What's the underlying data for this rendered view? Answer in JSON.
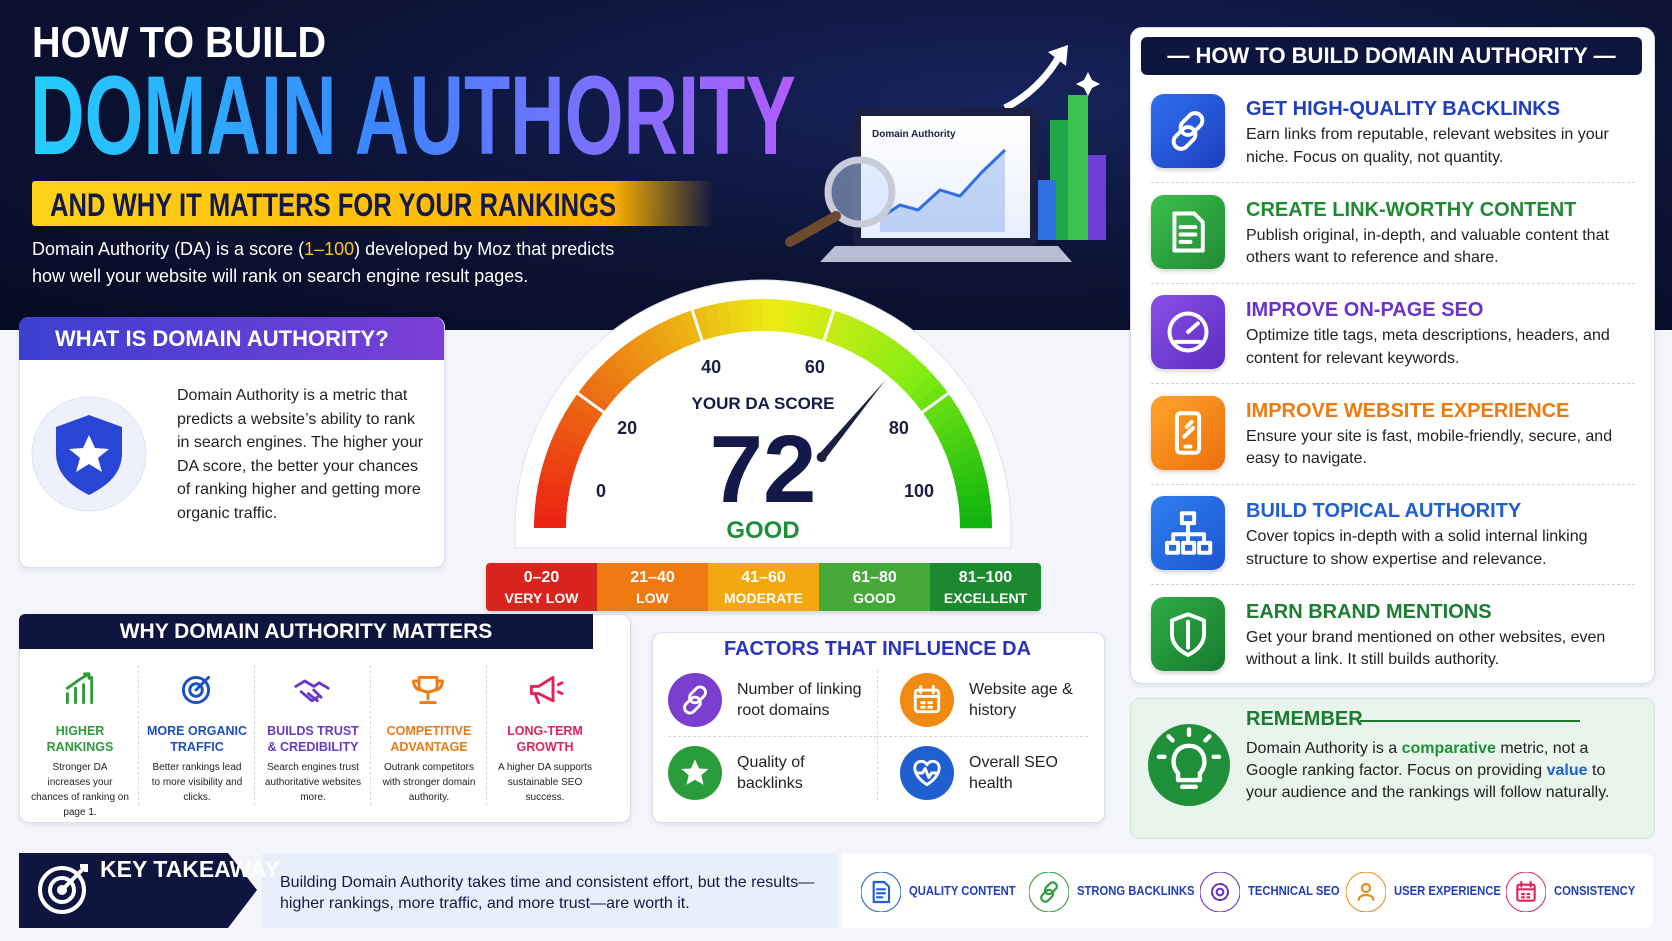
{
  "header": {
    "kicker": "HOW TO BUILD",
    "title": "DOMAIN AUTHORITY",
    "banner": "AND WHY IT MATTERS FOR YOUR RANKINGS",
    "description": [
      "Domain Authority (DA) is a score (",
      "1–100",
      ") developed by Moz that predicts how well your website will rank on search engine result pages."
    ]
  },
  "illustration": {
    "screen_title": "Domain Authority"
  },
  "what_is": {
    "title": "WHAT IS DOMAIN AUTHORITY?",
    "body": "Domain Authority is a metric that predicts a website’s ability to rank in search engines. The higher your DA score, the better your chances of ranking higher and getting more organic traffic."
  },
  "gauge": {
    "label": "YOUR DA SCORE",
    "score": 72,
    "rating": "GOOD",
    "lim": [
      0,
      100
    ],
    "ticks": [
      0,
      20,
      40,
      60,
      80,
      100
    ]
  },
  "scale": [
    {
      "range": "0–20",
      "label": "VERY LOW"
    },
    {
      "range": "21–40",
      "label": "LOW"
    },
    {
      "range": "41–60",
      "label": "MODERATE"
    },
    {
      "range": "61–80",
      "label": "GOOD"
    },
    {
      "range": "81–100",
      "label": "EXCELLENT"
    }
  ],
  "why_matters": {
    "title": "WHY DOMAIN AUTHORITY MATTERS",
    "items": [
      {
        "title": "HIGHER RANKINGS",
        "text": "Stronger DA increases your chances of ranking on page 1."
      },
      {
        "title": "MORE ORGANIC TRAFFIC",
        "text": "Better rankings lead to more visibility and clicks."
      },
      {
        "title": "BUILDS TRUST & CREDIBILITY",
        "text": "Search engines trust authoritative websites more."
      },
      {
        "title": "COMPETITIVE ADVANTAGE",
        "text": "Outrank competitors with stronger domain authority."
      },
      {
        "title": "LONG-TERM GROWTH",
        "text": "A higher DA supports sustainable SEO success."
      }
    ]
  },
  "factors": {
    "title": "FACTORS THAT INFLUENCE DA",
    "items": [
      "Number of linking root domains",
      "Website age & history",
      "Quality of backlinks",
      "Overall SEO health"
    ]
  },
  "steps": {
    "title": "HOW TO BUILD DOMAIN AUTHORITY",
    "items": [
      {
        "title": "GET HIGH-QUALITY BACKLINKS",
        "text": "Earn links from reputable, relevant websites in your niche. Focus on quality, not quantity."
      },
      {
        "title": "CREATE LINK-WORTHY CONTENT",
        "text": "Publish original, in-depth, and valuable content that others want to reference and share."
      },
      {
        "title": "IMPROVE ON-PAGE SEO",
        "text": "Optimize title tags, meta descriptions, headers, and content for relevant keywords."
      },
      {
        "title": "IMPROVE WEBSITE EXPERIENCE",
        "text": "Ensure your site is fast, mobile-friendly, secure, and easy to navigate."
      },
      {
        "title": "BUILD TOPICAL AUTHORITY",
        "text": "Cover topics in-depth with a solid internal linking structure to show expertise and relevance."
      },
      {
        "title": "EARN BRAND MENTIONS",
        "text": "Get your brand mentioned on other websites, even without a link. It still builds authority."
      }
    ]
  },
  "remember": {
    "title": "REMEMBER",
    "parts": [
      "Domain Authority is a ",
      "comparative",
      " metric, not a Google ranking factor. Focus on providing ",
      "value",
      " to your audience and the rankings will follow naturally."
    ]
  },
  "takeaway": {
    "title": "KEY TAKEAWAY",
    "text": "Building Domain Authority takes time and consistent effort, but the results—higher rankings, more traffic, and more trust—are worth it.",
    "pillars": [
      "QUALITY CONTENT",
      "STRONG BACKLINKS",
      "TECHNICAL SEO",
      "USER EXPERIENCE",
      "CONSISTENCY"
    ]
  }
}
